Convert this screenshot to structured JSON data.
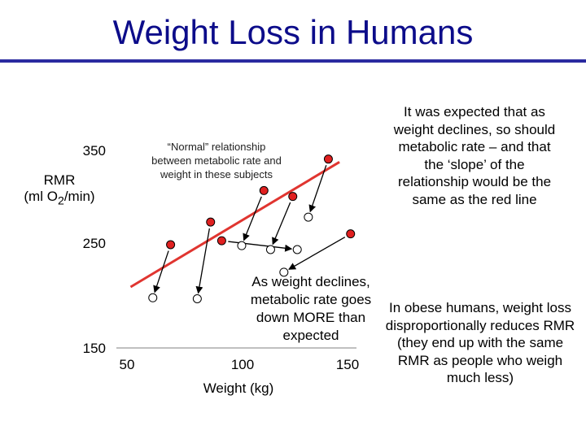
{
  "title": "Weight Loss in Humans",
  "annotations": {
    "normal_relationship": "“Normal” relationship between metabolic rate and weight in these subjects",
    "decline": "As weight declines, metabolic rate goes down MORE than expected",
    "expected": "It was expected that as weight declines, so should metabolic rate – and that the ‘slope’ of the relationship would be the same as the red line",
    "obese": "In obese humans, weight loss disproportionally reduces RMR (they end up with the same RMR as people who weigh much less)"
  },
  "colors": {
    "title": "#0c0c8a",
    "rule": "#2a2aa0",
    "line": "#e03530",
    "point_fill": "#e02020",
    "arrow": "#000000"
  },
  "chart_data": {
    "type": "scatter",
    "title": "",
    "ylabel_main": "RMR",
    "ylabel_unit_prefix": "(ml O",
    "ylabel_unit_sub": "2",
    "ylabel_unit_suffix": "/min)",
    "xlabel": "Weight (kg)",
    "x_ticks": [
      "50",
      "100",
      "150"
    ],
    "y_ticks": [
      "350",
      "250",
      "150"
    ],
    "xlim": [
      50,
      150
    ],
    "ylim": [
      150,
      350
    ],
    "grid": false,
    "series": [
      {
        "role": "before",
        "marker": "filled red circle",
        "points": [
          [
            70,
            255
          ],
          [
            88,
            278
          ],
          [
            93,
            259
          ],
          [
            112,
            310
          ],
          [
            125,
            304
          ],
          [
            141,
            342
          ]
        ]
      },
      {
        "role": "after",
        "marker": "hollow circle",
        "points": [
          [
            62,
            201
          ],
          [
            82,
            200
          ],
          [
            102,
            254
          ],
          [
            115,
            250
          ],
          [
            132,
            283
          ],
          [
            127,
            250
          ]
        ]
      }
    ],
    "arrows": [
      [
        0,
        0
      ],
      [
        1,
        1
      ],
      [
        2,
        5
      ],
      [
        3,
        2
      ],
      [
        4,
        3
      ],
      [
        5,
        4
      ]
    ],
    "trend_line": {
      "color": "red",
      "points": [
        [
          52,
          212
        ],
        [
          146,
          339
        ]
      ]
    },
    "example": {
      "before": [
        151,
        266
      ],
      "after": [
        121,
        227
      ]
    }
  }
}
